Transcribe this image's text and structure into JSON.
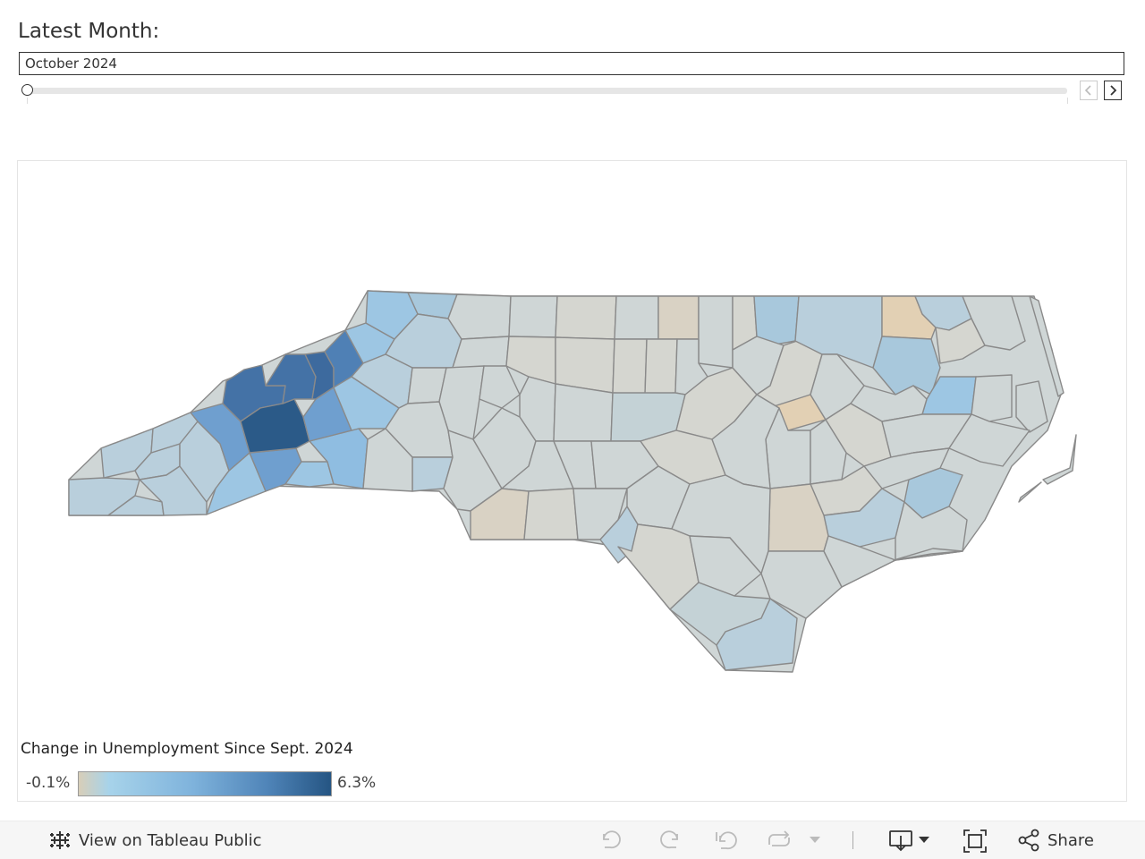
{
  "filter": {
    "title": "Latest Month:",
    "selected_month": "October 2024"
  },
  "legend": {
    "title": "Change in Unemployment Since Sept. 2024",
    "min_label": "-0.1%",
    "max_label": "6.3%",
    "colors": {
      "low": "#d8ceb8",
      "light_blue": "#a7d3ea",
      "mid_blue": "#6fa2d0",
      "high": "#255583"
    }
  },
  "map": {
    "region": "North Carolina counties",
    "colors": {
      "neutral": "#cfd6d6",
      "tan": "#d9d2c4",
      "orange": "#e2d0b4",
      "pale_blue": "#b9cfdc",
      "light_blue": "#9dc6e3",
      "medium_blue": "#6f9fcf",
      "dark_blue": "#4472a6",
      "darkest_blue": "#2b5a88"
    }
  },
  "toolbar": {
    "view_on_label": "View on Tableau Public",
    "share_label": "Share",
    "icons": [
      "tableau-logo-icon",
      "undo-icon",
      "redo-icon",
      "revert-icon",
      "refresh-icon",
      "dropdown-arrow-icon",
      "download-icon",
      "fullscreen-icon",
      "share-icon"
    ]
  }
}
